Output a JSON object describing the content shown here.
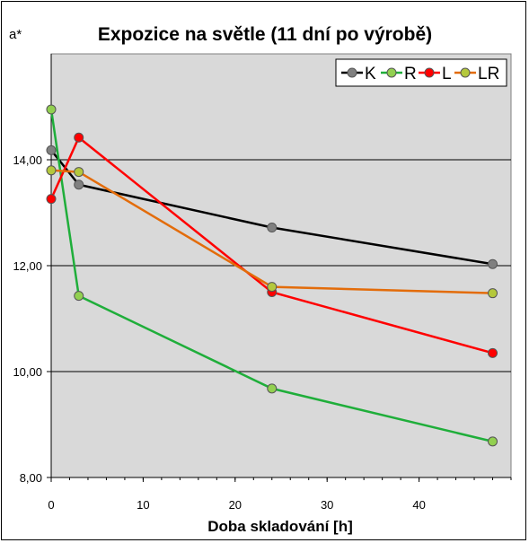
{
  "chart_data": {
    "type": "line",
    "title": "Expozice na světle (11 dní po výrobě)",
    "xlabel": "Doba skladování [h]",
    "ylabel": "a*",
    "xlim": [
      0,
      50
    ],
    "ylim": [
      8,
      16
    ],
    "x_ticks": [
      {
        "value": 0,
        "label": "0"
      },
      {
        "value": 10,
        "label": "10"
      },
      {
        "value": 20,
        "label": "20"
      },
      {
        "value": 30,
        "label": "30"
      },
      {
        "value": 40,
        "label": "40"
      }
    ],
    "y_ticks": [
      {
        "value": 8,
        "label": "8,00"
      },
      {
        "value": 10,
        "label": "10,00"
      },
      {
        "value": 12,
        "label": "12,00"
      },
      {
        "value": 14,
        "label": "14,00"
      }
    ],
    "grid": "horizontal",
    "plot_background": "#d9d9d9",
    "legend_position": "top-right",
    "series": [
      {
        "name": "K",
        "line_color": "#000000",
        "marker_color": "#808080",
        "x": [
          0,
          3,
          24,
          48
        ],
        "y": [
          14.18,
          13.53,
          12.72,
          12.03
        ]
      },
      {
        "name": "R",
        "line_color": "#1fae3a",
        "marker_color": "#92d050",
        "x": [
          0,
          3,
          24,
          48
        ],
        "y": [
          14.95,
          11.43,
          9.68,
          8.68
        ]
      },
      {
        "name": "L",
        "line_color": "#ff0000",
        "marker_color": "#ff0000",
        "x": [
          0,
          3,
          24,
          48
        ],
        "y": [
          13.26,
          14.42,
          11.5,
          10.35
        ]
      },
      {
        "name": "LR",
        "line_color": "#e36c0a",
        "marker_color": "#b4c83c",
        "x": [
          0,
          3,
          24,
          48
        ],
        "y": [
          13.8,
          13.77,
          11.6,
          11.48
        ]
      }
    ]
  }
}
